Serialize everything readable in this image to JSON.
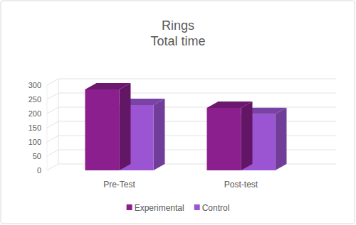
{
  "chart_data": {
    "type": "bar",
    "title": "Rings",
    "subtitle": "Total time",
    "categories": [
      "Pre-Test",
      "Post-test"
    ],
    "series": [
      {
        "name": "Experimental",
        "color": "#8b1f8e",
        "values": [
          285,
          220
        ]
      },
      {
        "name": "Control",
        "color": "#9b55d3",
        "values": [
          230,
          198
        ]
      }
    ],
    "ylim": [
      0,
      300
    ],
    "yticks": [
      0,
      50,
      100,
      150,
      200,
      250,
      300
    ],
    "grid": true,
    "legend": "bottom"
  }
}
